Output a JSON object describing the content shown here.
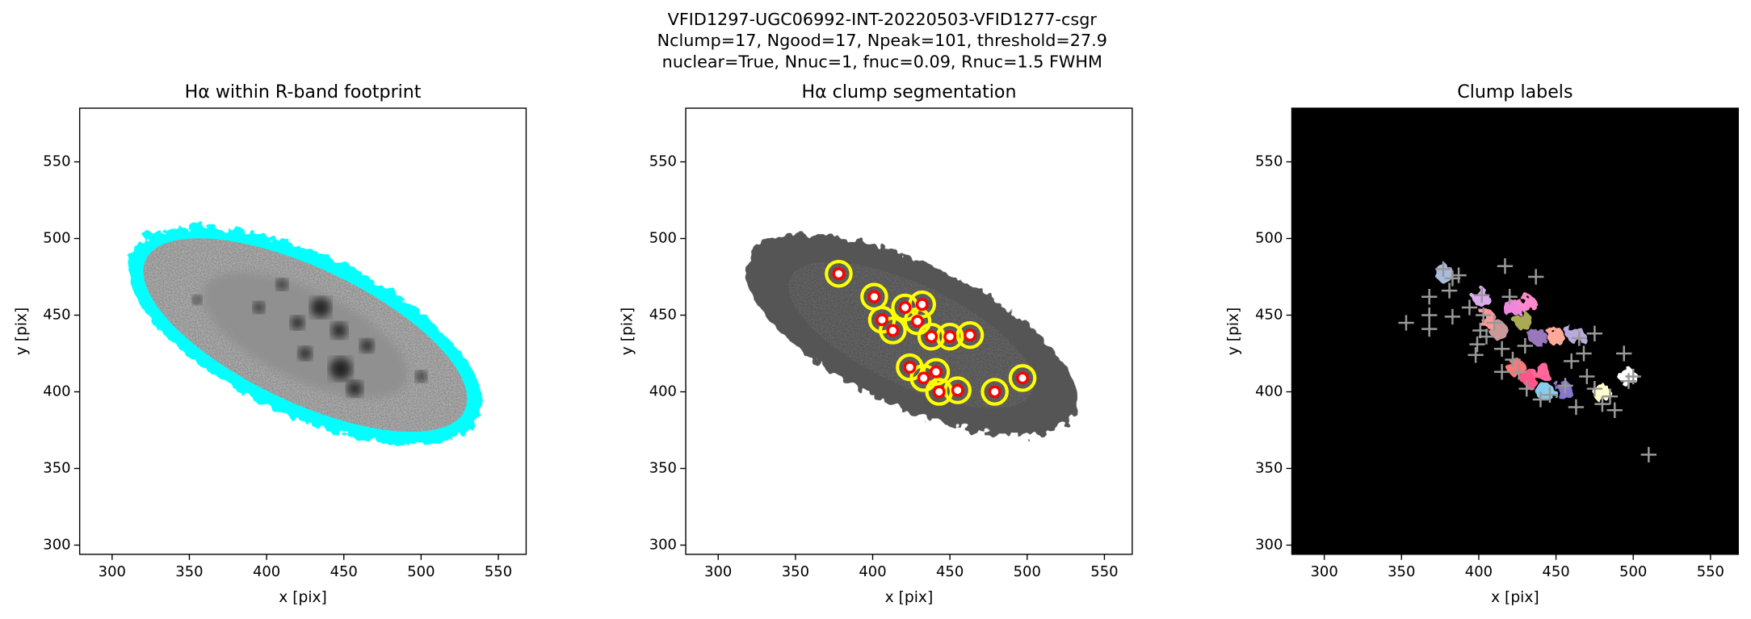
{
  "figure_title": [
    "VFID1297-UGC06992-INT-20220503-VFID1277-csgr",
    "Nclump=17, Ngood=17, Npeak=101, threshold=27.9",
    "nuclear=True, Nnuc=1, fnuc=0.09, Rnuc=1.5 FWHM"
  ],
  "chart_data": [
    {
      "type": "image",
      "variant": "footprint",
      "title": "Hα within R-band footprint",
      "xlabel": "x [pix]",
      "ylabel": "y [pix]",
      "xlim": [
        279,
        568
      ],
      "ylim": [
        294,
        585
      ],
      "xticks": [
        300,
        350,
        400,
        450,
        500,
        550
      ],
      "yticks": [
        300,
        350,
        400,
        450,
        500,
        550
      ],
      "outline_color": "#00ffff"
    },
    {
      "type": "image",
      "variant": "segmentation",
      "title": "Hα clump segmentation",
      "xlabel": "x [pix]",
      "ylabel": "y [pix]",
      "xlim": [
        279,
        568
      ],
      "ylim": [
        294,
        585
      ],
      "xticks": [
        300,
        350,
        400,
        450,
        500,
        550
      ],
      "yticks": [
        300,
        350,
        400,
        450,
        500,
        550
      ],
      "clumps": {
        "x": [
          378,
          401,
          406,
          421,
          432,
          429,
          413,
          438,
          450,
          463,
          424,
          433,
          441,
          443,
          455,
          479,
          497
        ],
        "y": [
          477,
          462,
          447,
          455,
          457,
          446,
          440,
          436,
          436,
          437,
          416,
          409,
          413,
          400,
          401,
          400,
          409
        ],
        "color": "#ff0000",
        "contour_color": "#ffff00"
      }
    },
    {
      "type": "image",
      "variant": "labels",
      "title": "Clump labels",
      "xlabel": "x [pix]",
      "ylabel": "y [pix]",
      "xlim": [
        279,
        568
      ],
      "ylim": [
        294,
        585
      ],
      "xticks": [
        300,
        350,
        400,
        450,
        500,
        550
      ],
      "yticks": [
        300,
        350,
        400,
        450,
        500,
        550
      ],
      "label_colors": [
        "#aabbdd",
        "#ddaaee",
        "#ff9999",
        "#ee88dd",
        "#ff88cc",
        "#aaaa55",
        "#cc9999",
        "#9977bb",
        "#ffaa99",
        "#bbaadd",
        "#ff7777",
        "#ff5588",
        "#ff6699",
        "#88ccee",
        "#8877cc",
        "#ffffcc",
        "#ffffff"
      ],
      "peaks": {
        "x": [
          353,
          368,
          368,
          368,
          377,
          383,
          387,
          381,
          383,
          394,
          402,
          403,
          401,
          399,
          398,
          405,
          410,
          417,
          420,
          437,
          415,
          422,
          415,
          426,
          431,
          440,
          446,
          456,
          463,
          470,
          475,
          480,
          485,
          488,
          494,
          500,
          497,
          510,
          468,
          465,
          475,
          460,
          430
        ],
        "y": [
          445,
          462,
          450,
          441,
          480,
          474,
          476,
          466,
          449,
          455,
          463,
          450,
          440,
          431,
          424,
          436,
          445,
          482,
          462,
          475,
          428,
          421,
          413,
          413,
          402,
          395,
          398,
          404,
          390,
          410,
          402,
          392,
          397,
          388,
          425,
          410,
          407,
          359,
          425,
          435,
          438,
          420,
          430
        ],
        "color": "#999999"
      }
    }
  ]
}
